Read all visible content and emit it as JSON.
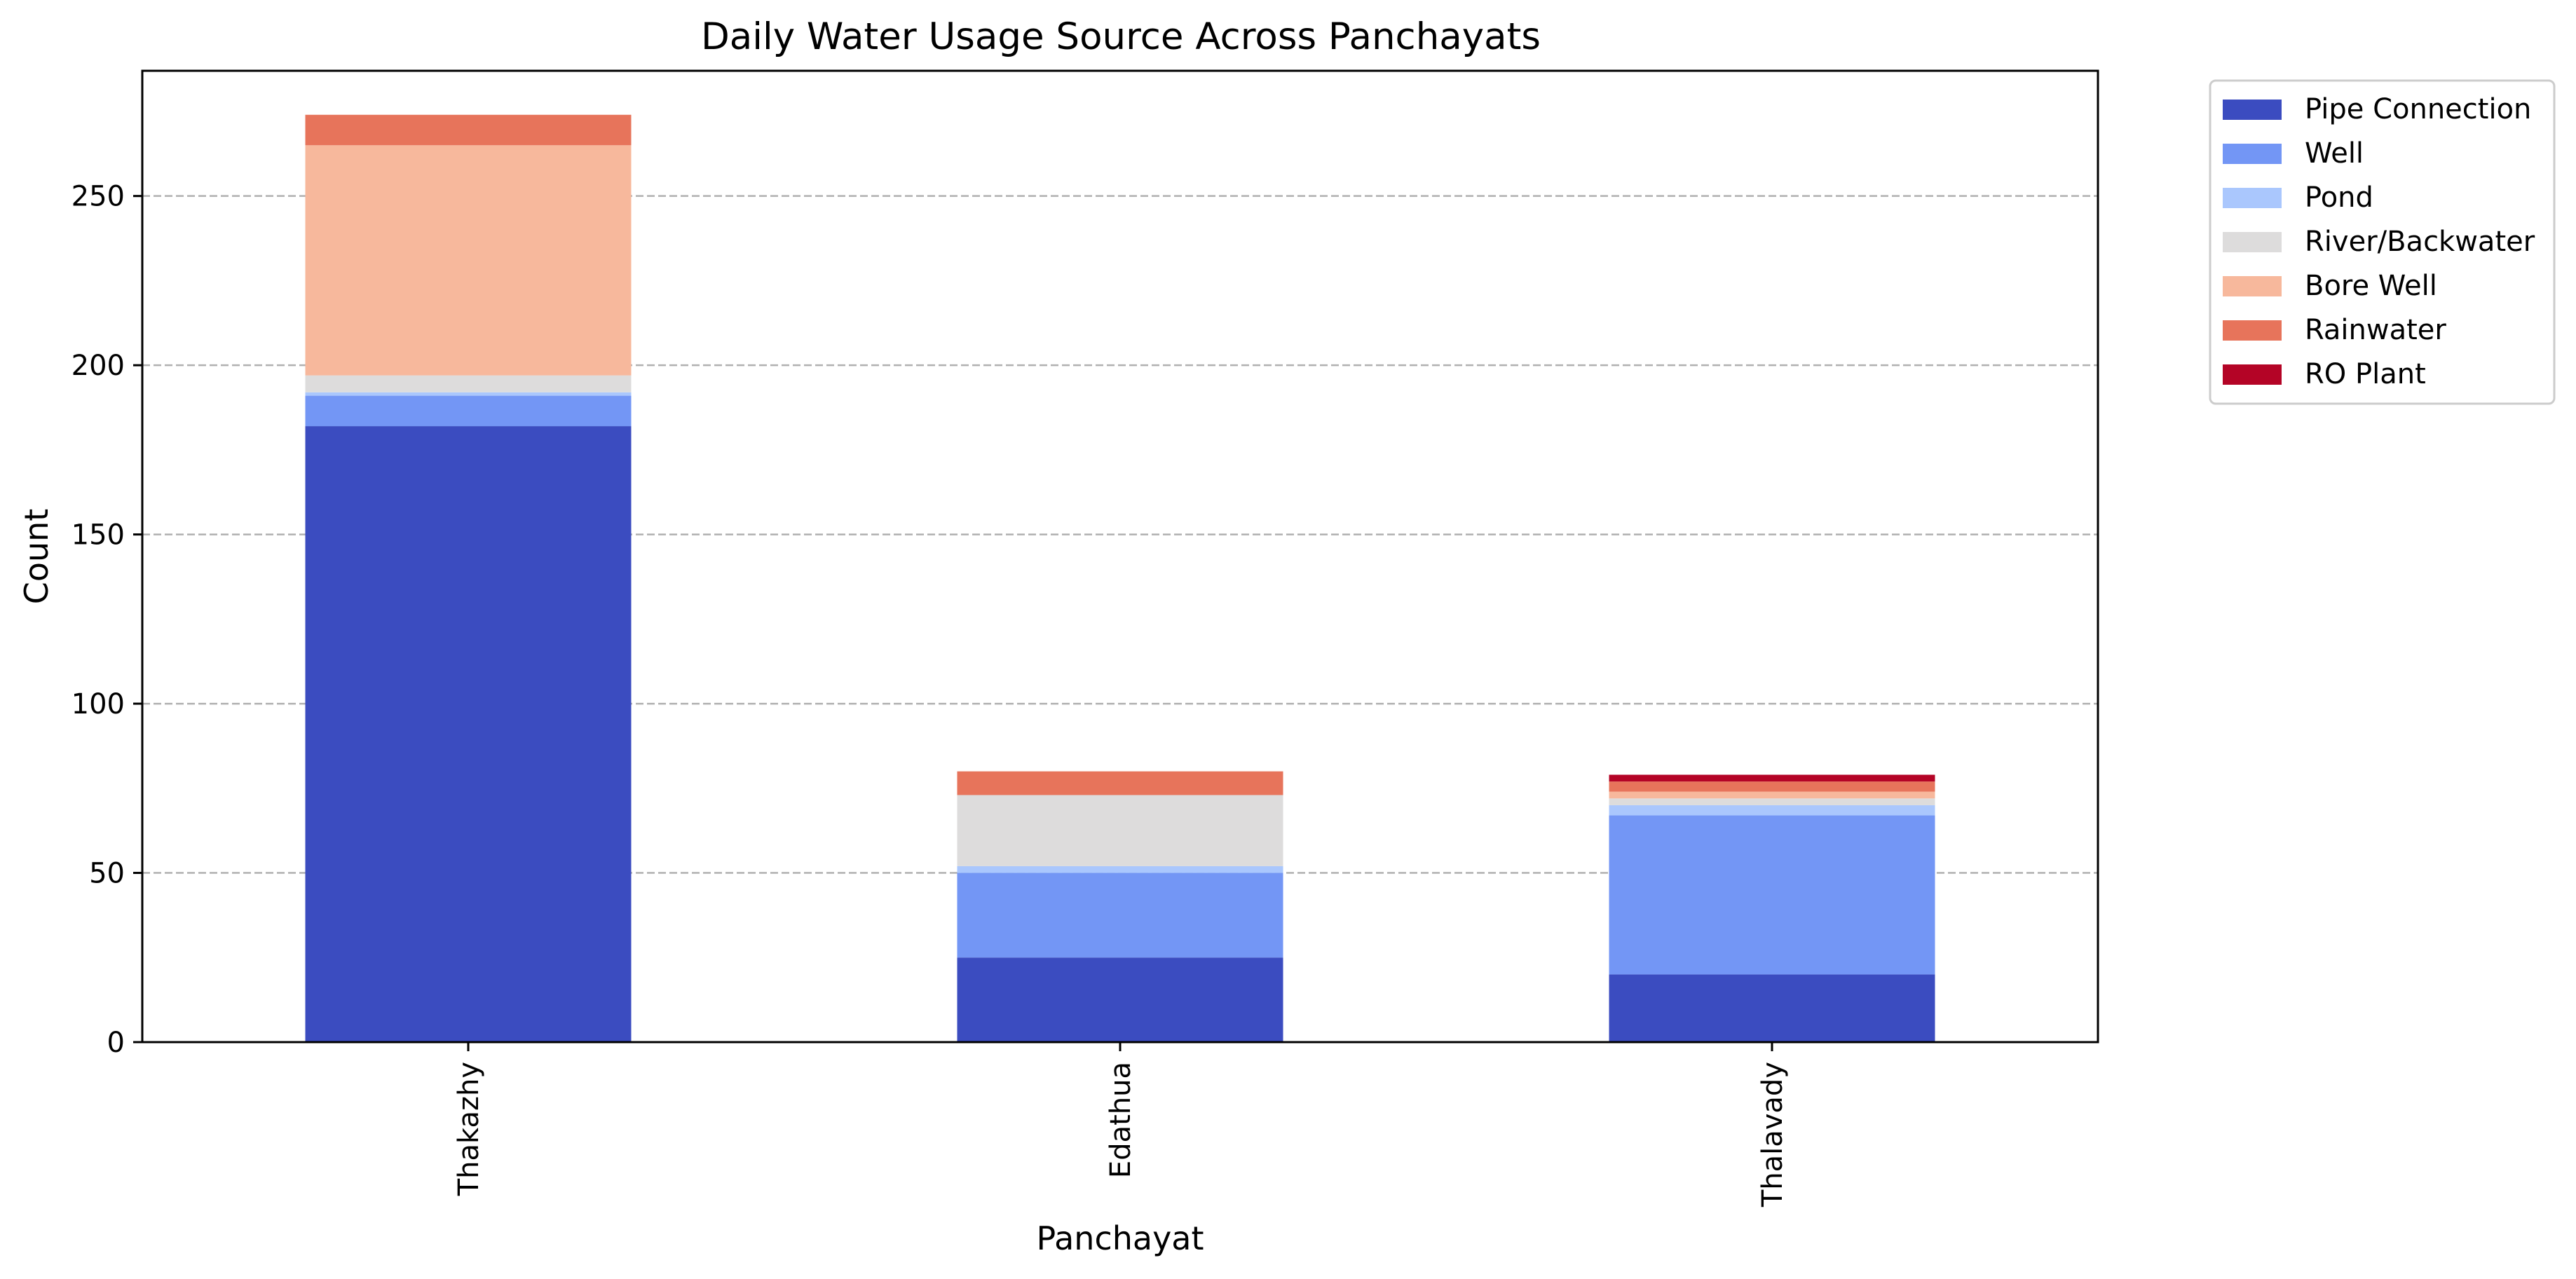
{
  "chart_data": {
    "type": "bar",
    "stacked": true,
    "title": "Daily Water Usage Source Across Panchayats",
    "xlabel": "Panchayat",
    "ylabel": "Count",
    "categories": [
      "Thakazhy",
      "Edathua",
      "Thalavady"
    ],
    "ylim": [
      0,
      287
    ],
    "yticks": [
      0,
      50,
      100,
      150,
      200,
      250
    ],
    "grid": "y-dashed",
    "legend_position": "outside-top-right",
    "series": [
      {
        "name": "Pipe Connection",
        "color": "#3b4cc0",
        "values": [
          182,
          25,
          20
        ]
      },
      {
        "name": "Well",
        "color": "#7396f5",
        "values": [
          9,
          25,
          47
        ]
      },
      {
        "name": "Pond",
        "color": "#aac7fd",
        "values": [
          1,
          2,
          3
        ]
      },
      {
        "name": "River/Backwater",
        "color": "#dddcdc",
        "values": [
          5,
          21,
          2
        ]
      },
      {
        "name": "Bore Well",
        "color": "#f7b89c",
        "values": [
          68,
          0,
          2
        ]
      },
      {
        "name": "Rainwater",
        "color": "#e7745b",
        "values": [
          9,
          7,
          3
        ]
      },
      {
        "name": "RO Plant",
        "color": "#b40426",
        "values": [
          0,
          0,
          2
        ]
      }
    ]
  }
}
